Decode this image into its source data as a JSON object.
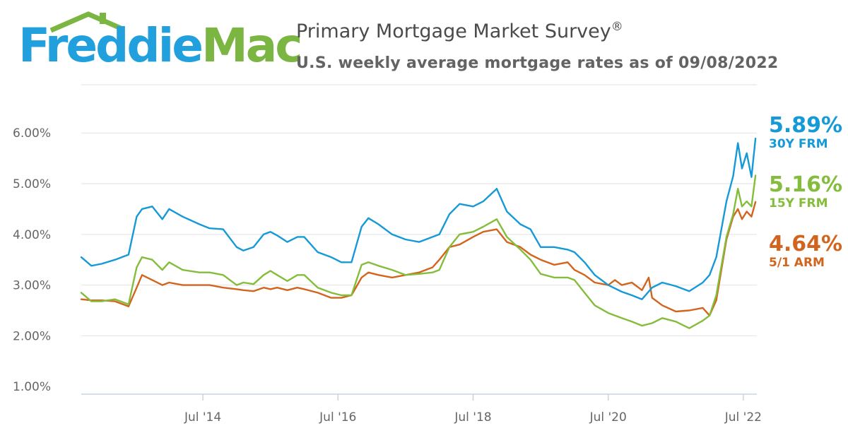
{
  "brand": {
    "name_part1": "Freddie",
    "name_part2": "Mac",
    "colors": {
      "blue": "#22a0dd",
      "green": "#7bb542"
    }
  },
  "header": {
    "title": "Primary Mortgage Market Survey",
    "title_mark": "®",
    "subtitle": "U.S. weekly average mortgage rates as of 09/08/2022"
  },
  "latest": [
    {
      "value": "5.89%",
      "label": "30Y FRM",
      "color": "#159ad7"
    },
    {
      "value": "5.16%",
      "label": "15Y FRM",
      "color": "#84bd3c"
    },
    {
      "value": "4.64%",
      "label": "5/1 ARM",
      "color": "#d2651e"
    }
  ],
  "chart_data": {
    "type": "line",
    "title": "Primary Mortgage Market Survey",
    "subtitle": "U.S. weekly average mortgage rates as of 09/08/2022",
    "xlabel": "",
    "ylabel": "",
    "x_range": [
      2012.7,
      2022.7
    ],
    "ylim": [
      0.85,
      6.95
    ],
    "y_ticks": [
      1,
      2,
      3,
      4,
      5,
      6
    ],
    "y_tick_labels": [
      "1.00%",
      "2.00%",
      "3.00%",
      "4.00%",
      "5.00%",
      "6.00%"
    ],
    "x_ticks": [
      2014.5,
      2016.5,
      2018.5,
      2020.5,
      2022.5
    ],
    "x_tick_labels": [
      "Jul '14",
      "Jul '16",
      "Jul '18",
      "Jul '20",
      "Jul '22"
    ],
    "grid": true,
    "series": [
      {
        "name": "30Y FRM",
        "color": "#159ad7",
        "x": [
          2012.7,
          2012.85,
          2013.0,
          2013.2,
          2013.4,
          2013.52,
          2013.6,
          2013.75,
          2013.9,
          2014.0,
          2014.2,
          2014.45,
          2014.6,
          2014.8,
          2015.0,
          2015.1,
          2015.25,
          2015.4,
          2015.5,
          2015.6,
          2015.75,
          2015.9,
          2016.0,
          2016.2,
          2016.4,
          2016.55,
          2016.7,
          2016.85,
          2016.95,
          2017.1,
          2017.3,
          2017.5,
          2017.7,
          2017.9,
          2018.0,
          2018.15,
          2018.3,
          2018.5,
          2018.65,
          2018.85,
          2019.0,
          2019.2,
          2019.35,
          2019.5,
          2019.7,
          2019.9,
          2020.0,
          2020.15,
          2020.3,
          2020.5,
          2020.7,
          2020.85,
          2021.0,
          2021.15,
          2021.3,
          2021.5,
          2021.7,
          2021.9,
          2022.0,
          2022.1,
          2022.25,
          2022.35,
          2022.42,
          2022.48,
          2022.55,
          2022.62,
          2022.68
        ],
        "values": [
          3.55,
          3.38,
          3.42,
          3.5,
          3.6,
          4.35,
          4.5,
          4.55,
          4.3,
          4.5,
          4.35,
          4.2,
          4.12,
          4.1,
          3.75,
          3.68,
          3.75,
          4.0,
          4.05,
          3.98,
          3.85,
          3.95,
          3.95,
          3.65,
          3.55,
          3.45,
          3.45,
          4.15,
          4.32,
          4.2,
          4.0,
          3.9,
          3.85,
          3.95,
          4.0,
          4.4,
          4.6,
          4.55,
          4.65,
          4.9,
          4.45,
          4.2,
          4.1,
          3.75,
          3.75,
          3.7,
          3.65,
          3.45,
          3.2,
          3.0,
          2.87,
          2.8,
          2.72,
          2.95,
          3.05,
          2.98,
          2.88,
          3.05,
          3.2,
          3.55,
          4.65,
          5.15,
          5.8,
          5.3,
          5.6,
          5.13,
          5.89
        ]
      },
      {
        "name": "15Y FRM",
        "color": "#84bd3c",
        "x": [
          2012.7,
          2012.85,
          2013.0,
          2013.2,
          2013.4,
          2013.52,
          2013.6,
          2013.75,
          2013.9,
          2014.0,
          2014.2,
          2014.45,
          2014.6,
          2014.8,
          2015.0,
          2015.1,
          2015.25,
          2015.4,
          2015.5,
          2015.6,
          2015.75,
          2015.9,
          2016.0,
          2016.2,
          2016.4,
          2016.55,
          2016.7,
          2016.85,
          2016.95,
          2017.1,
          2017.3,
          2017.5,
          2017.7,
          2017.9,
          2018.0,
          2018.15,
          2018.3,
          2018.5,
          2018.65,
          2018.85,
          2019.0,
          2019.2,
          2019.35,
          2019.5,
          2019.7,
          2019.9,
          2020.0,
          2020.15,
          2020.3,
          2020.5,
          2020.7,
          2020.85,
          2021.0,
          2021.15,
          2021.3,
          2021.5,
          2021.7,
          2021.9,
          2022.0,
          2022.1,
          2022.25,
          2022.35,
          2022.42,
          2022.48,
          2022.55,
          2022.62,
          2022.68
        ],
        "values": [
          2.85,
          2.68,
          2.68,
          2.72,
          2.62,
          3.35,
          3.55,
          3.5,
          3.3,
          3.45,
          3.3,
          3.25,
          3.25,
          3.2,
          3.0,
          3.05,
          3.02,
          3.2,
          3.28,
          3.2,
          3.08,
          3.2,
          3.2,
          2.95,
          2.85,
          2.8,
          2.8,
          3.4,
          3.45,
          3.38,
          3.3,
          3.2,
          3.22,
          3.25,
          3.3,
          3.75,
          4.0,
          4.05,
          4.15,
          4.3,
          3.95,
          3.7,
          3.5,
          3.22,
          3.15,
          3.15,
          3.1,
          2.85,
          2.6,
          2.45,
          2.35,
          2.28,
          2.2,
          2.25,
          2.35,
          2.28,
          2.15,
          2.3,
          2.4,
          2.8,
          3.95,
          4.4,
          4.9,
          4.55,
          4.65,
          4.55,
          5.16
        ]
      },
      {
        "name": "5/1 ARM",
        "color": "#d2651e",
        "x": [
          2012.7,
          2012.85,
          2013.0,
          2013.2,
          2013.4,
          2013.52,
          2013.6,
          2013.75,
          2013.9,
          2014.0,
          2014.2,
          2014.45,
          2014.6,
          2014.8,
          2015.0,
          2015.1,
          2015.25,
          2015.4,
          2015.5,
          2015.6,
          2015.75,
          2015.9,
          2016.0,
          2016.2,
          2016.4,
          2016.55,
          2016.7,
          2016.85,
          2016.95,
          2017.1,
          2017.3,
          2017.5,
          2017.7,
          2017.9,
          2018.0,
          2018.15,
          2018.3,
          2018.5,
          2018.65,
          2018.85,
          2019.0,
          2019.2,
          2019.35,
          2019.5,
          2019.7,
          2019.9,
          2020.0,
          2020.15,
          2020.3,
          2020.5,
          2020.6,
          2020.7,
          2020.85,
          2021.0,
          2021.1,
          2021.15,
          2021.3,
          2021.5,
          2021.7,
          2021.9,
          2022.0,
          2022.1,
          2022.25,
          2022.35,
          2022.42,
          2022.48,
          2022.55,
          2022.62,
          2022.68
        ],
        "values": [
          2.72,
          2.7,
          2.7,
          2.68,
          2.58,
          2.95,
          3.2,
          3.1,
          3.0,
          3.05,
          3.0,
          3.0,
          3.0,
          2.95,
          2.92,
          2.9,
          2.88,
          2.95,
          2.92,
          2.95,
          2.9,
          2.95,
          2.92,
          2.85,
          2.75,
          2.75,
          2.8,
          3.15,
          3.25,
          3.2,
          3.15,
          3.2,
          3.25,
          3.35,
          3.5,
          3.75,
          3.8,
          3.95,
          4.05,
          4.1,
          3.85,
          3.75,
          3.6,
          3.5,
          3.4,
          3.45,
          3.3,
          3.2,
          3.05,
          3.0,
          3.1,
          3.0,
          3.05,
          2.9,
          3.15,
          2.75,
          2.6,
          2.48,
          2.5,
          2.55,
          2.4,
          2.7,
          3.9,
          4.35,
          4.5,
          4.3,
          4.45,
          4.35,
          4.64
        ]
      }
    ]
  }
}
